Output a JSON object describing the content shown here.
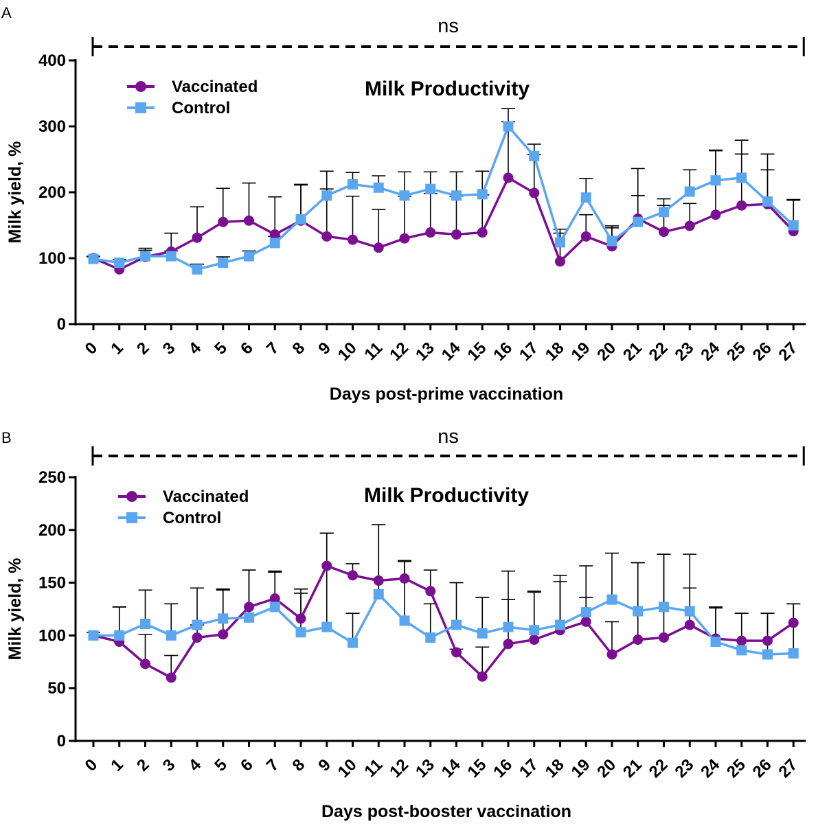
{
  "chart_data": [
    {
      "panel": "A",
      "type": "line",
      "title": "Milk Productivity",
      "xlabel": "Days post-prime vaccination",
      "ylabel": "Milk yield, %",
      "ylim": [
        0,
        400
      ],
      "yticks": [
        "0",
        "100",
        "200",
        "300",
        "400"
      ],
      "categories": [
        "0",
        "1",
        "2",
        "3",
        "4",
        "5",
        "6",
        "7",
        "8",
        "9",
        "10",
        "11",
        "12",
        "13",
        "14",
        "15",
        "16",
        "17",
        "18",
        "19",
        "20",
        "21",
        "22",
        "23",
        "24",
        "25",
        "26",
        "27"
      ],
      "significance": "ns",
      "series": [
        {
          "name": "Vaccinated",
          "color": "#7b0f91",
          "marker": "circle",
          "values": [
            100,
            83,
            102,
            110,
            131,
            155,
            157,
            136,
            157,
            133,
            128,
            116,
            130,
            139,
            136,
            139,
            222,
            199,
            95,
            133,
            118,
            160,
            140,
            149,
            166,
            180,
            182,
            141
          ],
          "errors": [
            3,
            12,
            13,
            28,
            47,
            51,
            57,
            57,
            54,
            72,
            66,
            58,
            64,
            59,
            58,
            57,
            85,
            58,
            43,
            33,
            28,
            76,
            40,
            34,
            98,
            78,
            76,
            48
          ]
        },
        {
          "name": "Control",
          "color": "#5aa7f0",
          "marker": "square",
          "values": [
            99,
            93,
            103,
            103,
            83,
            93,
            103,
            123,
            159,
            195,
            212,
            207,
            195,
            205,
            195,
            197,
            300,
            255,
            124,
            192,
            126,
            155,
            170,
            201,
            218,
            222,
            186,
            150
          ],
          "errors": [
            3,
            5,
            9,
            8,
            8,
            9,
            8,
            10,
            53,
            37,
            18,
            18,
            36,
            26,
            36,
            35,
            27,
            18,
            20,
            29,
            23,
            40,
            20,
            33,
            45,
            57,
            48,
            38
          ]
        }
      ]
    },
    {
      "panel": "B",
      "type": "line",
      "title": "Milk Productivity",
      "xlabel": "Days post-booster vaccination",
      "ylabel": "Milk yield, %",
      "ylim": [
        0,
        250
      ],
      "yticks": [
        "0",
        "50",
        "100",
        "150",
        "200",
        "250"
      ],
      "categories": [
        "0",
        "1",
        "2",
        "3",
        "4",
        "5",
        "6",
        "7",
        "8",
        "9",
        "10",
        "11",
        "12",
        "13",
        "14",
        "15",
        "16",
        "17",
        "18",
        "19",
        "20",
        "21",
        "22",
        "23",
        "24",
        "25",
        "26",
        "27"
      ],
      "significance": "ns",
      "series": [
        {
          "name": "Vaccinated",
          "color": "#7b0f91",
          "marker": "circle",
          "values": [
            100,
            94,
            73,
            60,
            98,
            101,
            127,
            135,
            116,
            166,
            157,
            152,
            154,
            142,
            84,
            61,
            92,
            96,
            105,
            113,
            82,
            96,
            98,
            110,
            97,
            95,
            95,
            112
          ],
          "errors": [
            3,
            33,
            28,
            21,
            12,
            43,
            35,
            26,
            28,
            31,
            11,
            53,
            17,
            20,
            3,
            28,
            42,
            46,
            46,
            23,
            31,
            73,
            79,
            35,
            30,
            26,
            26,
            18
          ]
        },
        {
          "name": "Control",
          "color": "#5aa7f0",
          "marker": "square",
          "values": [
            100,
            100,
            111,
            100,
            110,
            116,
            117,
            127,
            103,
            108,
            93,
            139,
            114,
            98,
            110,
            102,
            108,
            105,
            110,
            122,
            134,
            123,
            127,
            123,
            94,
            86,
            82,
            83
          ],
          "errors": [
            3,
            27,
            32,
            30,
            35,
            27,
            45,
            33,
            37,
            89,
            28,
            66,
            56,
            32,
            40,
            34,
            53,
            36,
            47,
            44,
            44,
            46,
            50,
            54,
            32,
            35,
            39,
            47
          ]
        }
      ]
    }
  ]
}
